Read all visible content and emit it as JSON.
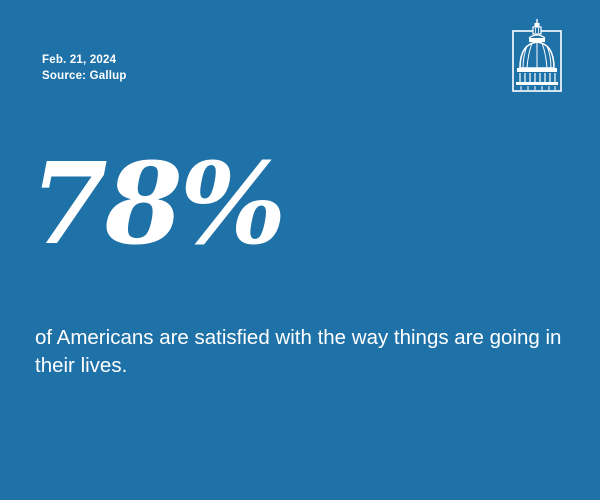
{
  "meta": {
    "date": "Feb. 21, 2024",
    "source": "Source: Gallup"
  },
  "stat": {
    "value": "78%",
    "description": "of Americans are satisfied with the way things are going in their lives."
  },
  "logo": {
    "icon": "capitol-dome-icon"
  },
  "colors": {
    "background": "#1f72a8",
    "text": "#ffffff"
  }
}
